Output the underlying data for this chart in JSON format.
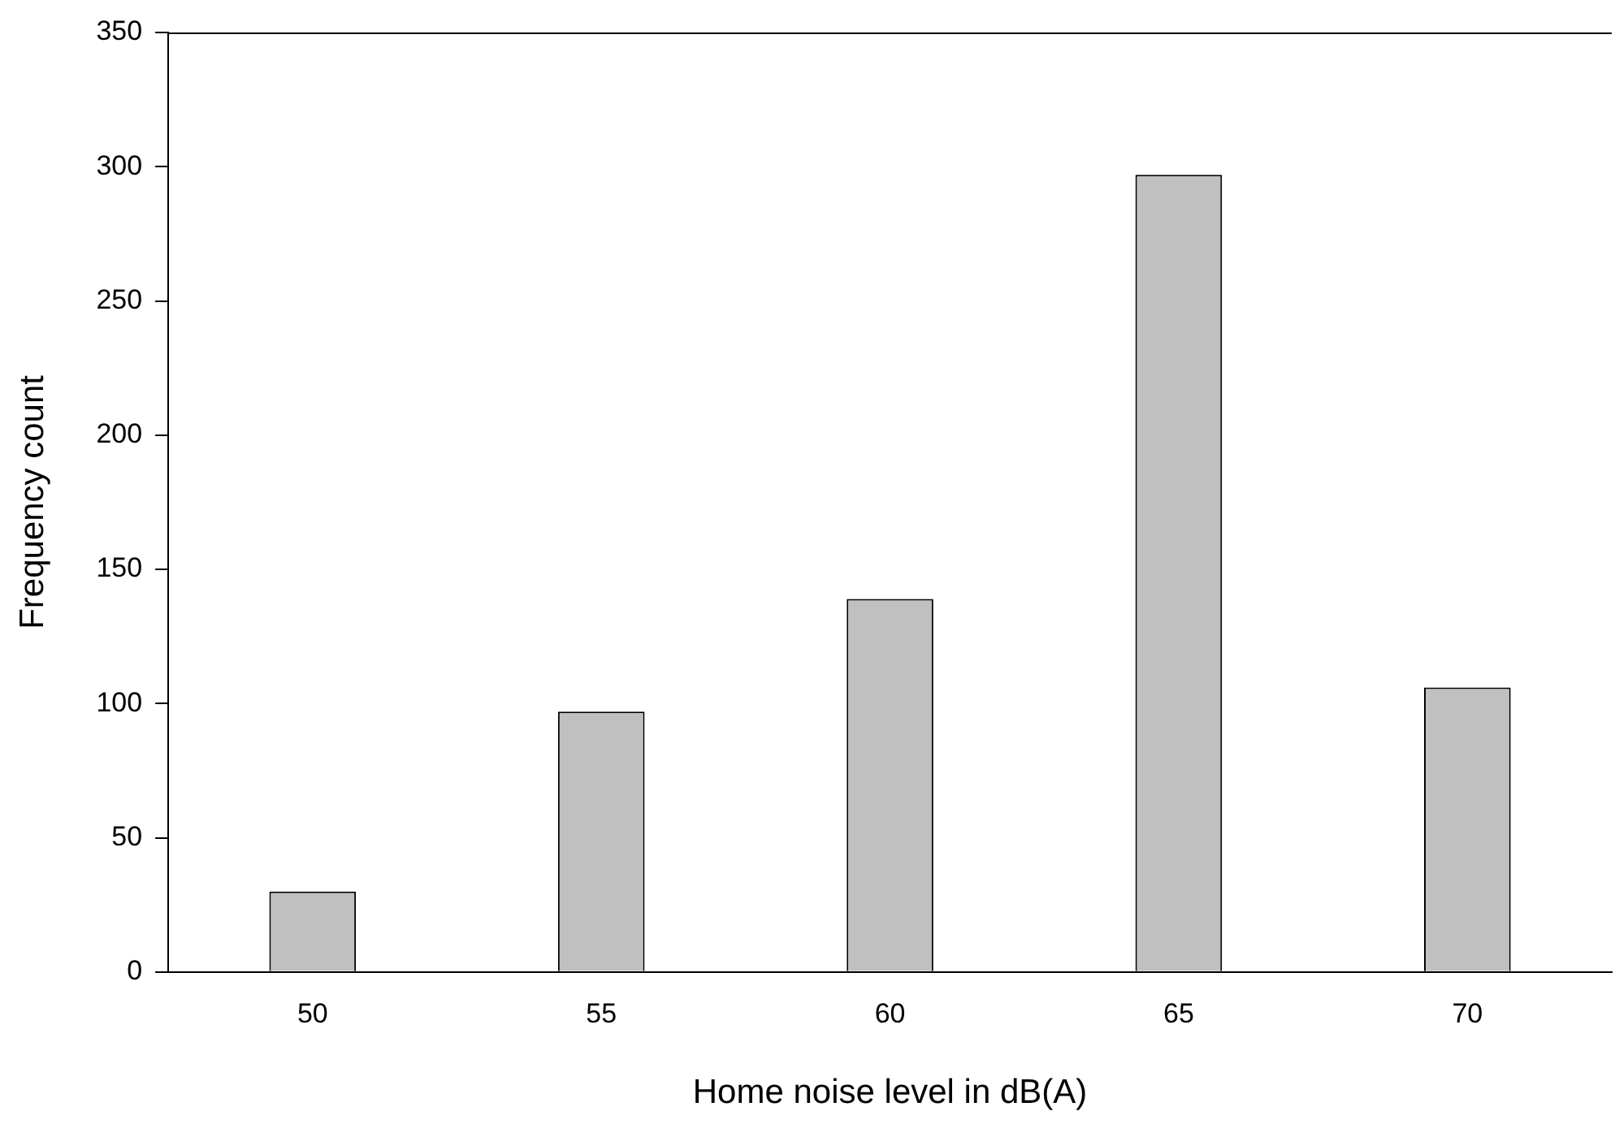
{
  "chart_data": {
    "type": "bar",
    "xlabel": "Home noise level in dB(A)",
    "ylabel": "Frequency count",
    "categories": [
      "50",
      "55",
      "60",
      "65",
      "70"
    ],
    "values": [
      30,
      97,
      139,
      297,
      106
    ],
    "color": "#c0c0c0",
    "ylim": [
      0,
      350
    ],
    "yticks": [
      0,
      50,
      100,
      150,
      200,
      250,
      300,
      350
    ],
    "grid": false,
    "legend": false
  }
}
